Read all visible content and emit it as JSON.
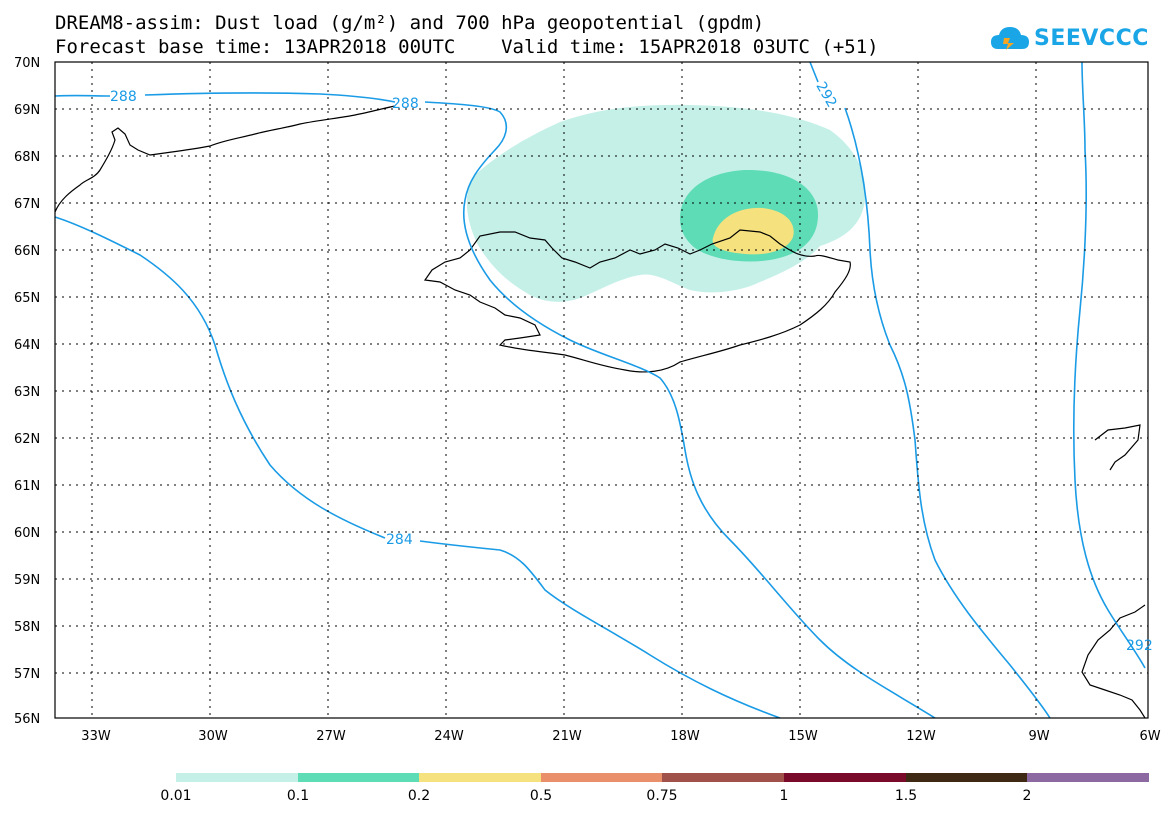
{
  "header": {
    "title_line1": "DREAM8-assim: Dust load (g/m²) and 700 hPa geopotential (gpdm)",
    "title_line2": "Forecast base time: 13APR2018 00UTC    Valid time: 15APR2018 03UTC (+51)",
    "logo_text": "SEEVCCC",
    "logo_icon": "cloud-icon",
    "logo_color": "#1aa5e6"
  },
  "map": {
    "lat_labels": [
      "70N",
      "69N",
      "68N",
      "67N",
      "66N",
      "65N",
      "64N",
      "63N",
      "62N",
      "61N",
      "60N",
      "59N",
      "58N",
      "57N",
      "56N"
    ],
    "lon_labels": [
      "33W",
      "30W",
      "27W",
      "24W",
      "21W",
      "18W",
      "15W",
      "12W",
      "9W",
      "6W"
    ],
    "contour_labels": [
      "288",
      "288",
      "292",
      "284",
      "292"
    ],
    "contour_color": "#1a9be6",
    "coastline_color": "#000000"
  },
  "legend": {
    "labels": [
      "0.01",
      "0.1",
      "0.2",
      "0.5",
      "0.75",
      "1",
      "1.5",
      "2"
    ],
    "colors": [
      "#c4f0e8",
      "#5ddcb5",
      "#f5e27e",
      "#e98f6a",
      "#a0524a",
      "#7a0a2a",
      "#3e2a14",
      "#8c69a0"
    ]
  }
}
